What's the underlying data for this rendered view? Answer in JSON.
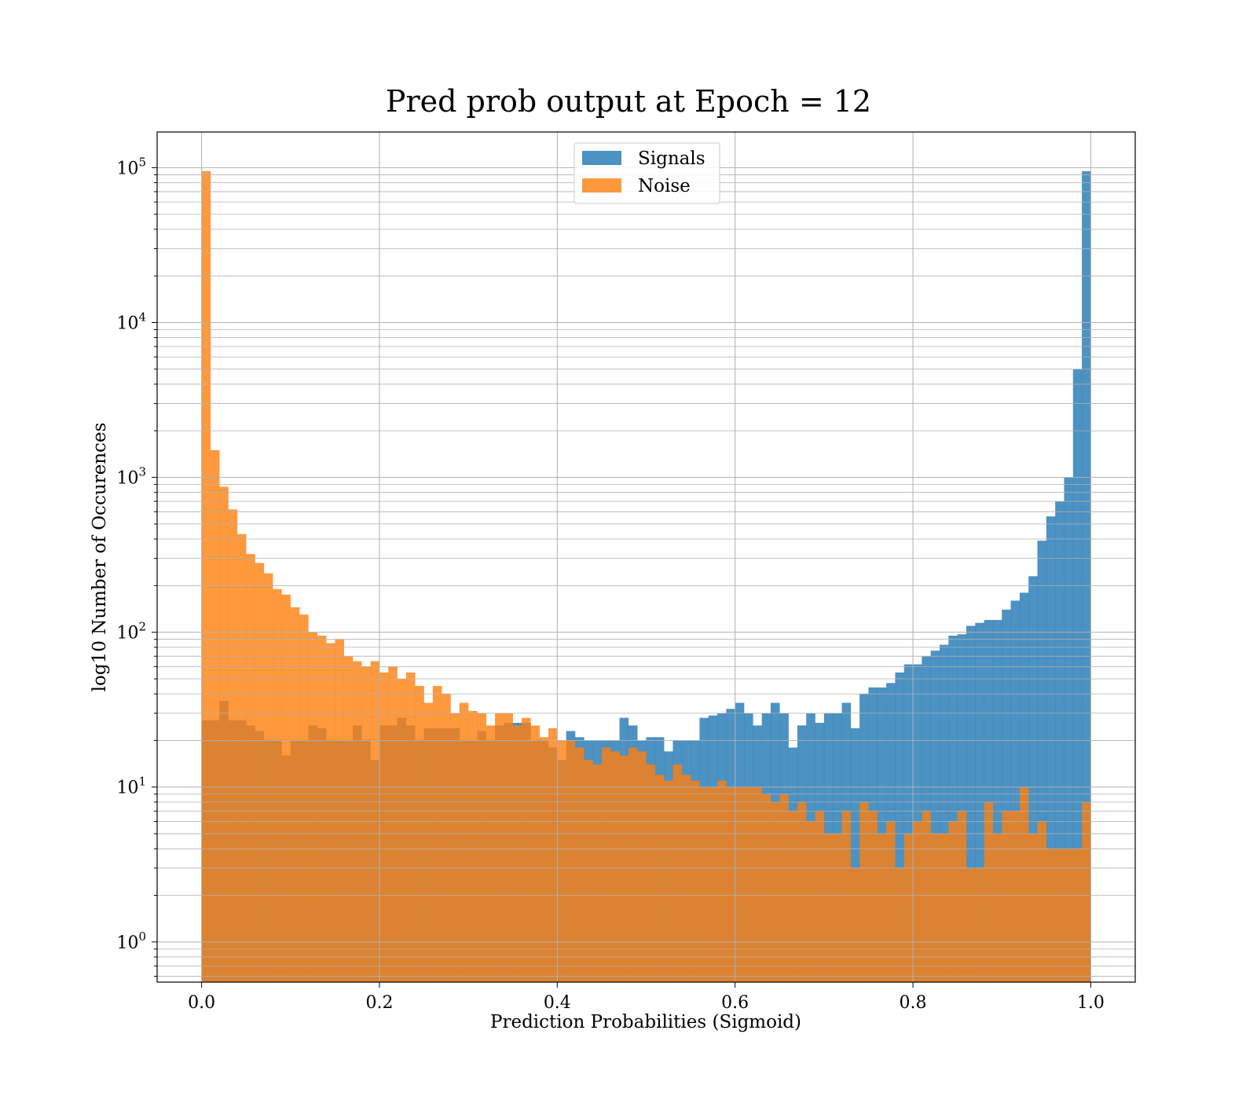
{
  "chart_data": {
    "type": "bar",
    "title": "Pred prob output at Epoch = 12",
    "xlabel": "Prediction Probabilities (Sigmoid)",
    "ylabel": "log10 Number of Occurences",
    "yscale": "log",
    "xlim": [
      -0.05,
      1.05
    ],
    "ylim": [
      0.55,
      170000
    ],
    "bin_range": [
      0,
      1
    ],
    "bin_count": 100,
    "x_ticks": [
      "0.0",
      "0.2",
      "0.4",
      "0.6",
      "0.8",
      "1.0"
    ],
    "x_tick_values": [
      0,
      0.2,
      0.4,
      0.6,
      0.8,
      1.0
    ],
    "y_ticks": [
      {
        "base": "10",
        "exp": "0",
        "value": 1
      },
      {
        "base": "10",
        "exp": "1",
        "value": 10
      },
      {
        "base": "10",
        "exp": "2",
        "value": 100
      },
      {
        "base": "10",
        "exp": "3",
        "value": 1000
      },
      {
        "base": "10",
        "exp": "4",
        "value": 10000
      },
      {
        "base": "10",
        "exp": "5",
        "value": 100000
      }
    ],
    "grid": true,
    "legend_position": "top-center",
    "series": [
      {
        "name": "Signals",
        "color": "#1f77b4",
        "values": [
          27,
          27,
          36,
          27,
          27,
          25,
          23,
          20,
          20,
          16,
          20,
          20,
          25,
          24,
          20,
          20,
          20,
          25,
          20,
          15,
          25,
          25,
          28,
          25,
          20,
          24,
          24,
          24,
          24,
          20,
          20,
          23,
          20,
          25,
          26,
          26,
          26,
          20,
          20,
          18,
          15,
          23,
          21,
          20,
          20,
          20,
          20,
          28,
          25,
          20,
          21,
          21,
          17,
          20,
          20,
          20,
          28,
          29,
          30,
          32,
          35,
          30,
          25,
          30,
          35,
          30,
          18,
          25,
          30,
          26,
          30,
          30,
          35,
          24,
          40,
          44,
          44,
          47,
          55,
          62,
          62,
          70,
          76,
          83,
          95,
          97,
          110,
          115,
          120,
          120,
          140,
          160,
          180,
          230,
          390,
          560,
          700,
          1000,
          5000,
          95000
        ]
      },
      {
        "name": "Noise",
        "color": "#ff7f0e",
        "values": [
          95000,
          1500,
          870,
          620,
          430,
          320,
          280,
          240,
          190,
          175,
          145,
          130,
          100,
          95,
          85,
          90,
          70,
          65,
          60,
          65,
          55,
          60,
          50,
          55,
          45,
          35,
          45,
          40,
          30,
          35,
          31,
          30,
          25,
          30,
          30,
          25,
          28,
          25,
          21,
          24,
          20,
          20,
          18,
          15,
          14,
          18,
          17,
          16,
          18,
          17,
          14,
          12,
          11,
          14,
          12,
          11,
          10,
          10,
          11,
          10,
          10,
          10,
          10,
          9,
          8,
          9,
          7,
          8,
          6,
          7,
          5,
          5,
          7,
          3,
          8,
          7,
          5,
          6,
          3,
          5,
          6,
          7,
          5,
          5,
          6,
          7,
          3,
          3,
          8,
          5,
          7,
          7,
          10,
          5,
          6,
          4,
          4,
          4,
          4,
          8
        ]
      }
    ]
  }
}
